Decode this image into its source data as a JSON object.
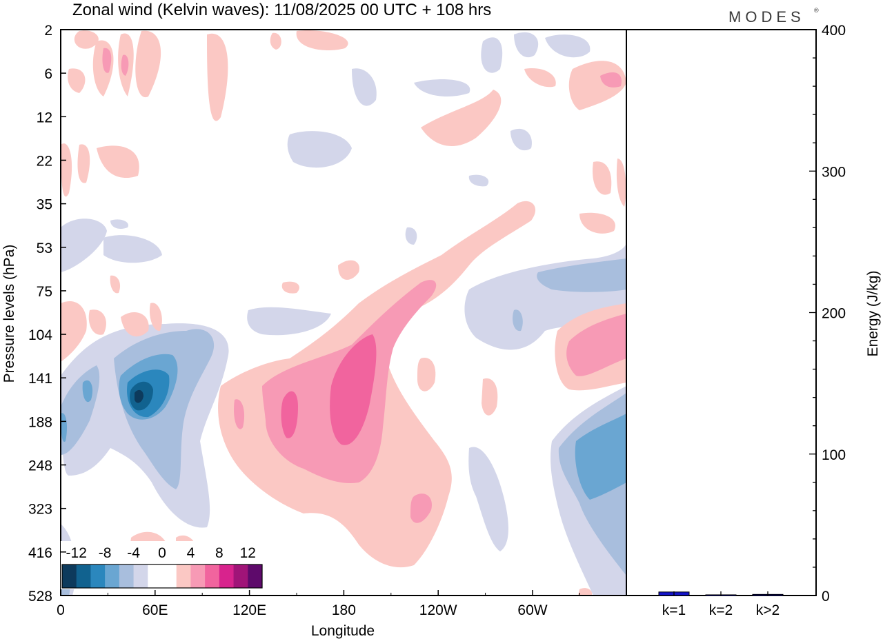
{
  "chart_data": {
    "type": "heatmap",
    "title": "Zonal wind (Kelvin waves):  11/08/2025  00 UTC  + 108 hrs",
    "brand": "MODES",
    "brand_mark": "®",
    "xlabel": "Longitude",
    "ylabel": "Pressure levels (hPa)",
    "x_ticks": [
      "0",
      "60E",
      "120E",
      "180",
      "120W",
      "60W"
    ],
    "y_ticks": [
      "2",
      "6",
      "12",
      "22",
      "35",
      "53",
      "75",
      "104",
      "141",
      "188",
      "248",
      "323",
      "416",
      "528"
    ],
    "colorbar": {
      "labels": [
        "-12",
        "-8",
        "-4",
        "0",
        "4",
        "8",
        "12"
      ],
      "colors": [
        "#0d3a5c",
        "#11628f",
        "#2b87bd",
        "#6aa6d2",
        "#a8bedd",
        "#d3d6ea",
        "#ffffff",
        "#ffffff",
        "#fbc8c4",
        "#f79ab5",
        "#f1649e",
        "#d8238d",
        "#a01478",
        "#5e0a6b"
      ]
    },
    "energy_panel": {
      "ylabel": "Energy (J/kg)",
      "ylim": [
        0,
        400
      ],
      "y_ticks": [
        "0",
        "100",
        "200",
        "300",
        "400"
      ],
      "categories": [
        "k=1",
        "k=2",
        "k>2"
      ],
      "values": [
        2.5,
        0.5,
        0.8
      ],
      "bar_color": "#1414c8"
    }
  }
}
